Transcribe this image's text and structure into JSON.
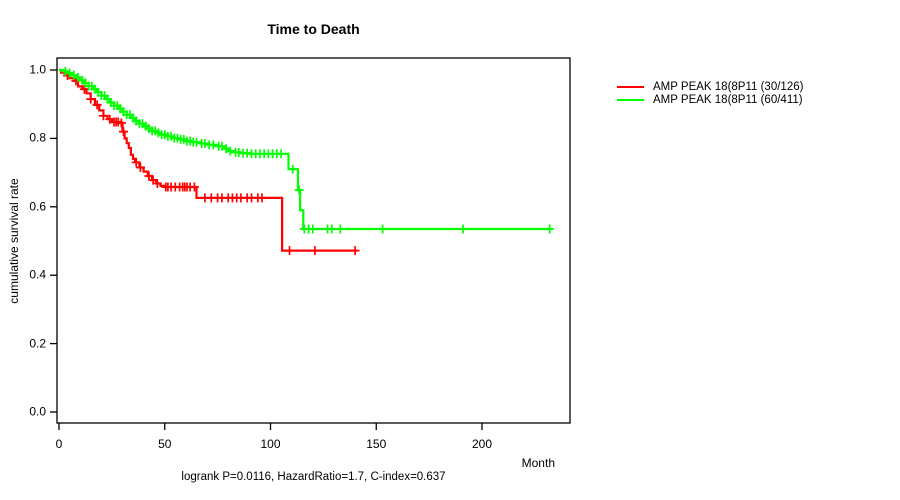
{
  "chart_data": {
    "type": "line",
    "subtype": "kaplan-meier-step",
    "title": "Time to Death",
    "xlabel": "Month",
    "ylabel": "cumulative survival rate",
    "annotation": "logrank P=0.0116, HazardRatio=1.7, C-index=0.637",
    "xlim": [
      0,
      241
    ],
    "ylim": [
      0.0,
      1.0
    ],
    "x_ticks": [
      "0",
      "50",
      "100",
      "150",
      "200"
    ],
    "x_tick_values": [
      0,
      50,
      100,
      150,
      200
    ],
    "y_ticks": [
      "0.0",
      "0.2",
      "0.4",
      "0.6",
      "0.8",
      "1.0"
    ],
    "y_tick_values": [
      0.0,
      0.2,
      0.4,
      0.6,
      0.8,
      1.0
    ],
    "grid": false,
    "legend_position": "right-outside",
    "axis_color": "#000000",
    "series": [
      {
        "name": "AMP PEAK 18(8P11 (30/126)",
        "color": "#ff0000",
        "events": 30,
        "n": 126,
        "end_month": 141,
        "steps": [
          [
            0,
            1.0
          ],
          [
            1,
            0.992
          ],
          [
            3,
            0.984
          ],
          [
            5,
            0.976
          ],
          [
            7,
            0.968
          ],
          [
            9,
            0.952
          ],
          [
            11,
            0.944
          ],
          [
            13,
            0.932
          ],
          [
            15,
            0.915
          ],
          [
            17,
            0.898
          ],
          [
            19,
            0.882
          ],
          [
            21,
            0.866
          ],
          [
            23,
            0.856
          ],
          [
            25,
            0.848
          ],
          [
            29,
            0.845
          ],
          [
            30,
            0.82
          ],
          [
            31,
            0.8
          ],
          [
            32,
            0.786
          ],
          [
            33,
            0.772
          ],
          [
            34,
            0.752
          ],
          [
            35,
            0.74
          ],
          [
            36,
            0.73
          ],
          [
            38,
            0.715
          ],
          [
            40,
            0.703
          ],
          [
            42,
            0.69
          ],
          [
            44,
            0.678
          ],
          [
            46,
            0.668
          ],
          [
            48,
            0.661
          ],
          [
            50,
            0.658
          ],
          [
            65,
            0.626
          ],
          [
            105.5,
            0.472
          ]
        ],
        "censor_months": [
          4,
          8,
          12,
          15,
          18,
          21,
          24,
          26,
          27,
          28,
          29.5,
          30.5,
          36.5,
          38.5,
          42.5,
          44.5,
          46.5,
          50.5,
          51.5,
          53,
          55,
          57,
          58.5,
          59.5,
          60.5,
          62,
          64,
          69,
          72,
          75,
          77,
          80,
          82,
          84,
          86,
          89,
          91,
          94,
          96,
          109,
          121,
          140
        ]
      },
      {
        "name": "AMP PEAK 18(8P11 (60/411)",
        "color": "#00ff00",
        "events": 60,
        "n": 411,
        "end_month": 233,
        "steps": [
          [
            0,
            1.0
          ],
          [
            2,
            0.996
          ],
          [
            4,
            0.991
          ],
          [
            6,
            0.985
          ],
          [
            8,
            0.978
          ],
          [
            10,
            0.97
          ],
          [
            12,
            0.962
          ],
          [
            14,
            0.953
          ],
          [
            16,
            0.944
          ],
          [
            18,
            0.935
          ],
          [
            20,
            0.925
          ],
          [
            22,
            0.915
          ],
          [
            24,
            0.905
          ],
          [
            26,
            0.896
          ],
          [
            28,
            0.887
          ],
          [
            30,
            0.878
          ],
          [
            32,
            0.869
          ],
          [
            34,
            0.86
          ],
          [
            36,
            0.851
          ],
          [
            38,
            0.843
          ],
          [
            40,
            0.836
          ],
          [
            42,
            0.829
          ],
          [
            44,
            0.822
          ],
          [
            46,
            0.816
          ],
          [
            48,
            0.811
          ],
          [
            51,
            0.806
          ],
          [
            54,
            0.801
          ],
          [
            57,
            0.797
          ],
          [
            60,
            0.792
          ],
          [
            63,
            0.789
          ],
          [
            67,
            0.785
          ],
          [
            71,
            0.781
          ],
          [
            75,
            0.777
          ],
          [
            78,
            0.77
          ],
          [
            80,
            0.763
          ],
          [
            83,
            0.759
          ],
          [
            86,
            0.757
          ],
          [
            90,
            0.755
          ],
          [
            108.5,
            0.71
          ],
          [
            113,
            0.649
          ],
          [
            114,
            0.59
          ],
          [
            115.5,
            0.535
          ]
        ],
        "censor_months": [
          3,
          5,
          7,
          9,
          11,
          12.5,
          14,
          15.5,
          17,
          18.5,
          20,
          21.5,
          23,
          24.5,
          26,
          27.5,
          29,
          30.5,
          32,
          33.5,
          35,
          36.5,
          38,
          39.5,
          41,
          42.5,
          44,
          45.5,
          47,
          48.5,
          50,
          51.5,
          53,
          54.5,
          56,
          57.5,
          59,
          60.5,
          62,
          63.5,
          65,
          67.5,
          69,
          71,
          73,
          75.5,
          77,
          79,
          81,
          83.5,
          85,
          87,
          89,
          91,
          93,
          95,
          97,
          99,
          101,
          103,
          105,
          110.5,
          113.5,
          116,
          118,
          120,
          127,
          129,
          133,
          153,
          191,
          232
        ]
      }
    ]
  }
}
